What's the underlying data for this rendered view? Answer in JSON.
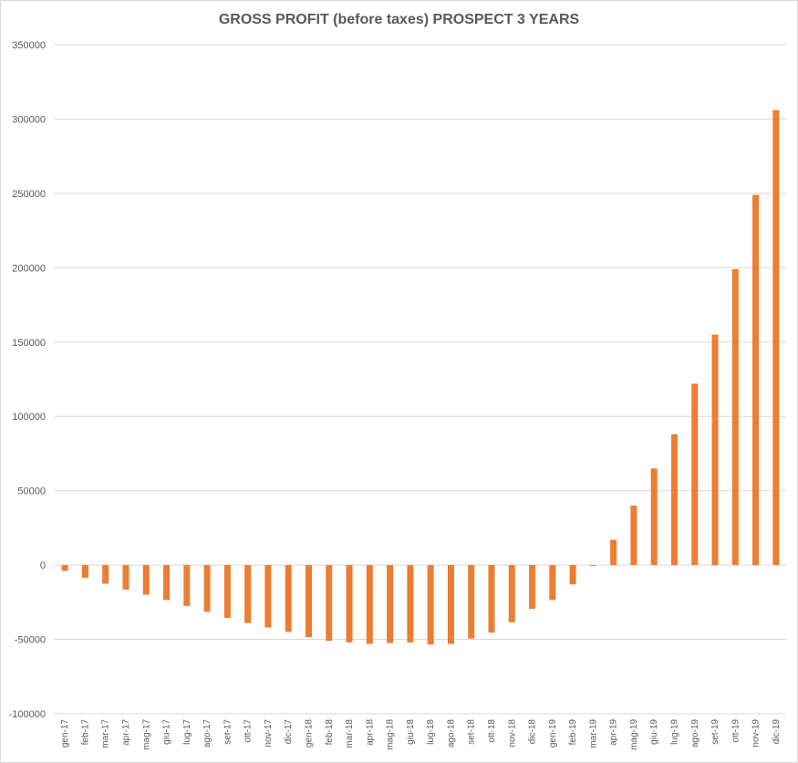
{
  "chart_data": {
    "type": "bar",
    "title": "GROSS PROFIT (before taxes) PROSPECT 3 YEARS",
    "xlabel": "",
    "ylabel": "",
    "ylim": [
      -100000,
      350000
    ],
    "yticks": [
      "-100000",
      "-50000",
      "0",
      "50000",
      "100000",
      "150000",
      "200000",
      "250000",
      "300000",
      "350000"
    ],
    "grid": true,
    "bar_color": "#ED7D31",
    "categories": [
      "gen-17",
      "feb-17",
      "mar-17",
      "apr-17",
      "mag-17",
      "giu-17",
      "lug-17",
      "ago-17",
      "set-17",
      "ott-17",
      "nov-17",
      "dic-17",
      "gen-18",
      "feb-18",
      "mar-18",
      "apr-18",
      "mag-18",
      "giu-18",
      "lug-18",
      "ago-18",
      "set-18",
      "ott-18",
      "nov-18",
      "dic-18",
      "gen-19",
      "feb-19",
      "mar-19",
      "apr-19",
      "mag-19",
      "giu-19",
      "lug-19",
      "ago-19",
      "set-19",
      "ott-19",
      "nov-19",
      "dic-19"
    ],
    "values": [
      -4000,
      -8500,
      -12500,
      -16500,
      -20000,
      -23500,
      -27500,
      -31500,
      -35500,
      -39000,
      -42000,
      -45000,
      -48500,
      -51000,
      -52000,
      -53000,
      -52500,
      -52000,
      -53500,
      -53000,
      -49500,
      -45500,
      -38500,
      -29500,
      -23500,
      -13000,
      -500,
      17000,
      40000,
      65000,
      88000,
      122000,
      155000,
      199000,
      249000,
      306000
    ]
  }
}
